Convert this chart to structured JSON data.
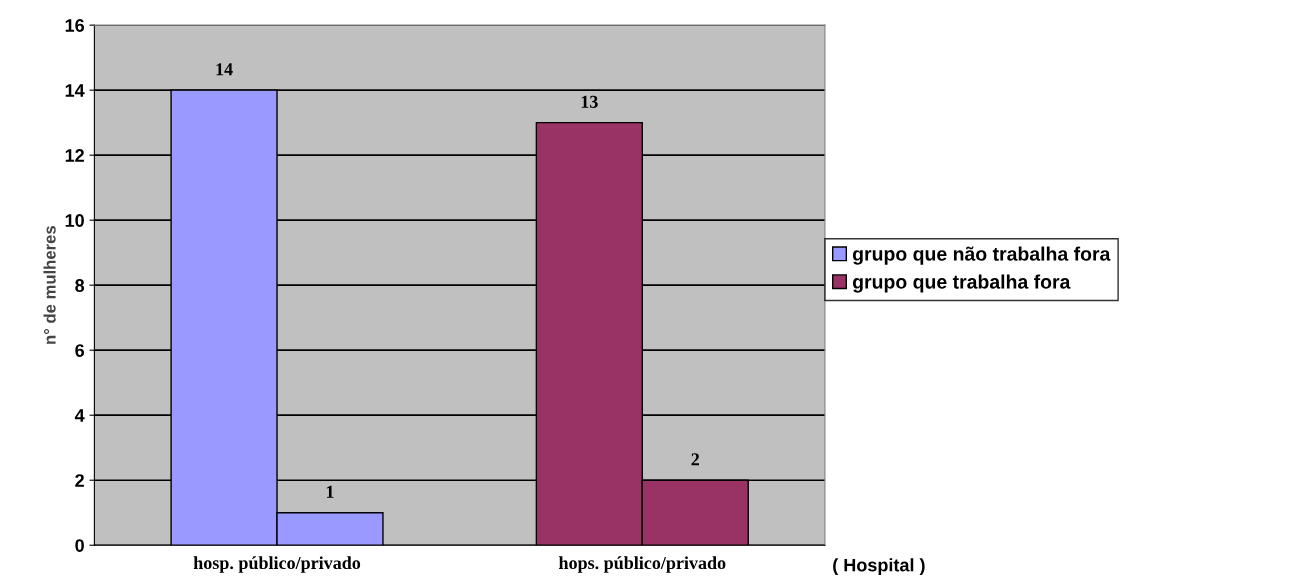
{
  "chart_data": {
    "type": "bar",
    "categories": [
      "hosp. público/privado",
      "hops. público/privado"
    ],
    "series": [
      {
        "name": "grupo que não trabalha fora",
        "color": "#9999ff",
        "values": [
          14,
          null
        ]
      },
      {
        "color": "#9999ff",
        "values": [
          1,
          null
        ]
      },
      {
        "name": "grupo que trabalha fora",
        "color": "#993366",
        "values": [
          null,
          13
        ]
      },
      {
        "color": "#993366",
        "values": [
          null,
          2
        ]
      }
    ],
    "ylabel": "n° de mulheres",
    "xlabel": "( Hospital )",
    "ylim": [
      0,
      16
    ],
    "yticks": [
      0,
      2,
      4,
      6,
      8,
      10,
      12,
      14,
      16
    ],
    "grid": "y",
    "legend": "right",
    "data_labels": true
  }
}
